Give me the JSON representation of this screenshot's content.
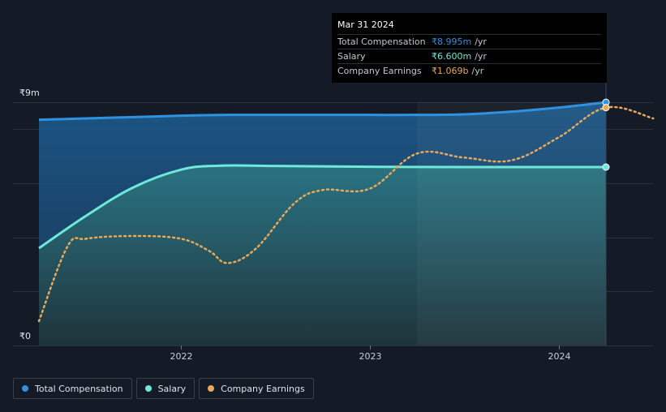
{
  "chart_data": {
    "type": "area",
    "title": "",
    "xlabel": "",
    "ylabel": "",
    "y_unit_label_top": "₹9m",
    "y_unit_label_bottom": "₹0",
    "ylim": [
      0,
      9
    ],
    "xlim": [
      2021.25,
      2024.5
    ],
    "x_ticks": [
      {
        "value": 2022.0,
        "label": "2022"
      },
      {
        "value": 2023.0,
        "label": "2023"
      },
      {
        "value": 2024.0,
        "label": "2024"
      }
    ],
    "y_gridlines": [
      0,
      2,
      4,
      6,
      8,
      9
    ],
    "shaded_from": 2023.25,
    "series": [
      {
        "name": "Total Compensation",
        "color": "#2f91e0",
        "style": "solid-area",
        "points": [
          [
            2021.25,
            8.35
          ],
          [
            2021.5,
            8.4
          ],
          [
            2021.75,
            8.45
          ],
          [
            2022.0,
            8.5
          ],
          [
            2022.25,
            8.53
          ],
          [
            2022.5,
            8.53
          ],
          [
            2022.75,
            8.53
          ],
          [
            2023.0,
            8.53
          ],
          [
            2023.25,
            8.53
          ],
          [
            2023.5,
            8.55
          ],
          [
            2023.75,
            8.65
          ],
          [
            2024.0,
            8.8
          ],
          [
            2024.25,
            8.995
          ]
        ]
      },
      {
        "name": "Salary",
        "color": "#6ee8d8",
        "style": "solid-area",
        "points": [
          [
            2021.25,
            3.6
          ],
          [
            2021.5,
            4.8
          ],
          [
            2021.75,
            5.85
          ],
          [
            2022.0,
            6.5
          ],
          [
            2022.2,
            6.65
          ],
          [
            2022.5,
            6.64
          ],
          [
            2023.0,
            6.61
          ],
          [
            2023.5,
            6.6
          ],
          [
            2024.0,
            6.6
          ],
          [
            2024.25,
            6.6
          ]
        ]
      },
      {
        "name": "Company Earnings",
        "color": "#e9a95b",
        "style": "dotted-line",
        "points": [
          [
            2021.25,
            0.9
          ],
          [
            2021.4,
            3.65
          ],
          [
            2021.5,
            3.95
          ],
          [
            2021.75,
            4.05
          ],
          [
            2022.0,
            3.95
          ],
          [
            2022.15,
            3.5
          ],
          [
            2022.25,
            3.05
          ],
          [
            2022.4,
            3.6
          ],
          [
            2022.6,
            5.25
          ],
          [
            2022.75,
            5.75
          ],
          [
            2023.0,
            5.8
          ],
          [
            2023.25,
            7.1
          ],
          [
            2023.5,
            6.95
          ],
          [
            2023.75,
            6.85
          ],
          [
            2024.0,
            7.7
          ],
          [
            2024.25,
            8.8
          ],
          [
            2024.5,
            8.4
          ]
        ]
      }
    ]
  },
  "tooltip": {
    "title": "Mar 31 2024",
    "rows": [
      {
        "label": "Total Compensation",
        "value": "₹8.995m",
        "unit": "/yr",
        "color": "#2f91e0"
      },
      {
        "label": "Salary",
        "value": "₹6.600m",
        "unit": "/yr",
        "color": "#6ee8d8"
      },
      {
        "label": "Company Earnings",
        "value": "₹1.069b",
        "unit": "/yr",
        "color": "#e9a95b"
      }
    ]
  },
  "legend": [
    {
      "label": "Total Compensation",
      "color": "#2f91e0"
    },
    {
      "label": "Salary",
      "color": "#6ee8d8"
    },
    {
      "label": "Company Earnings",
      "color": "#e9a95b"
    }
  ]
}
